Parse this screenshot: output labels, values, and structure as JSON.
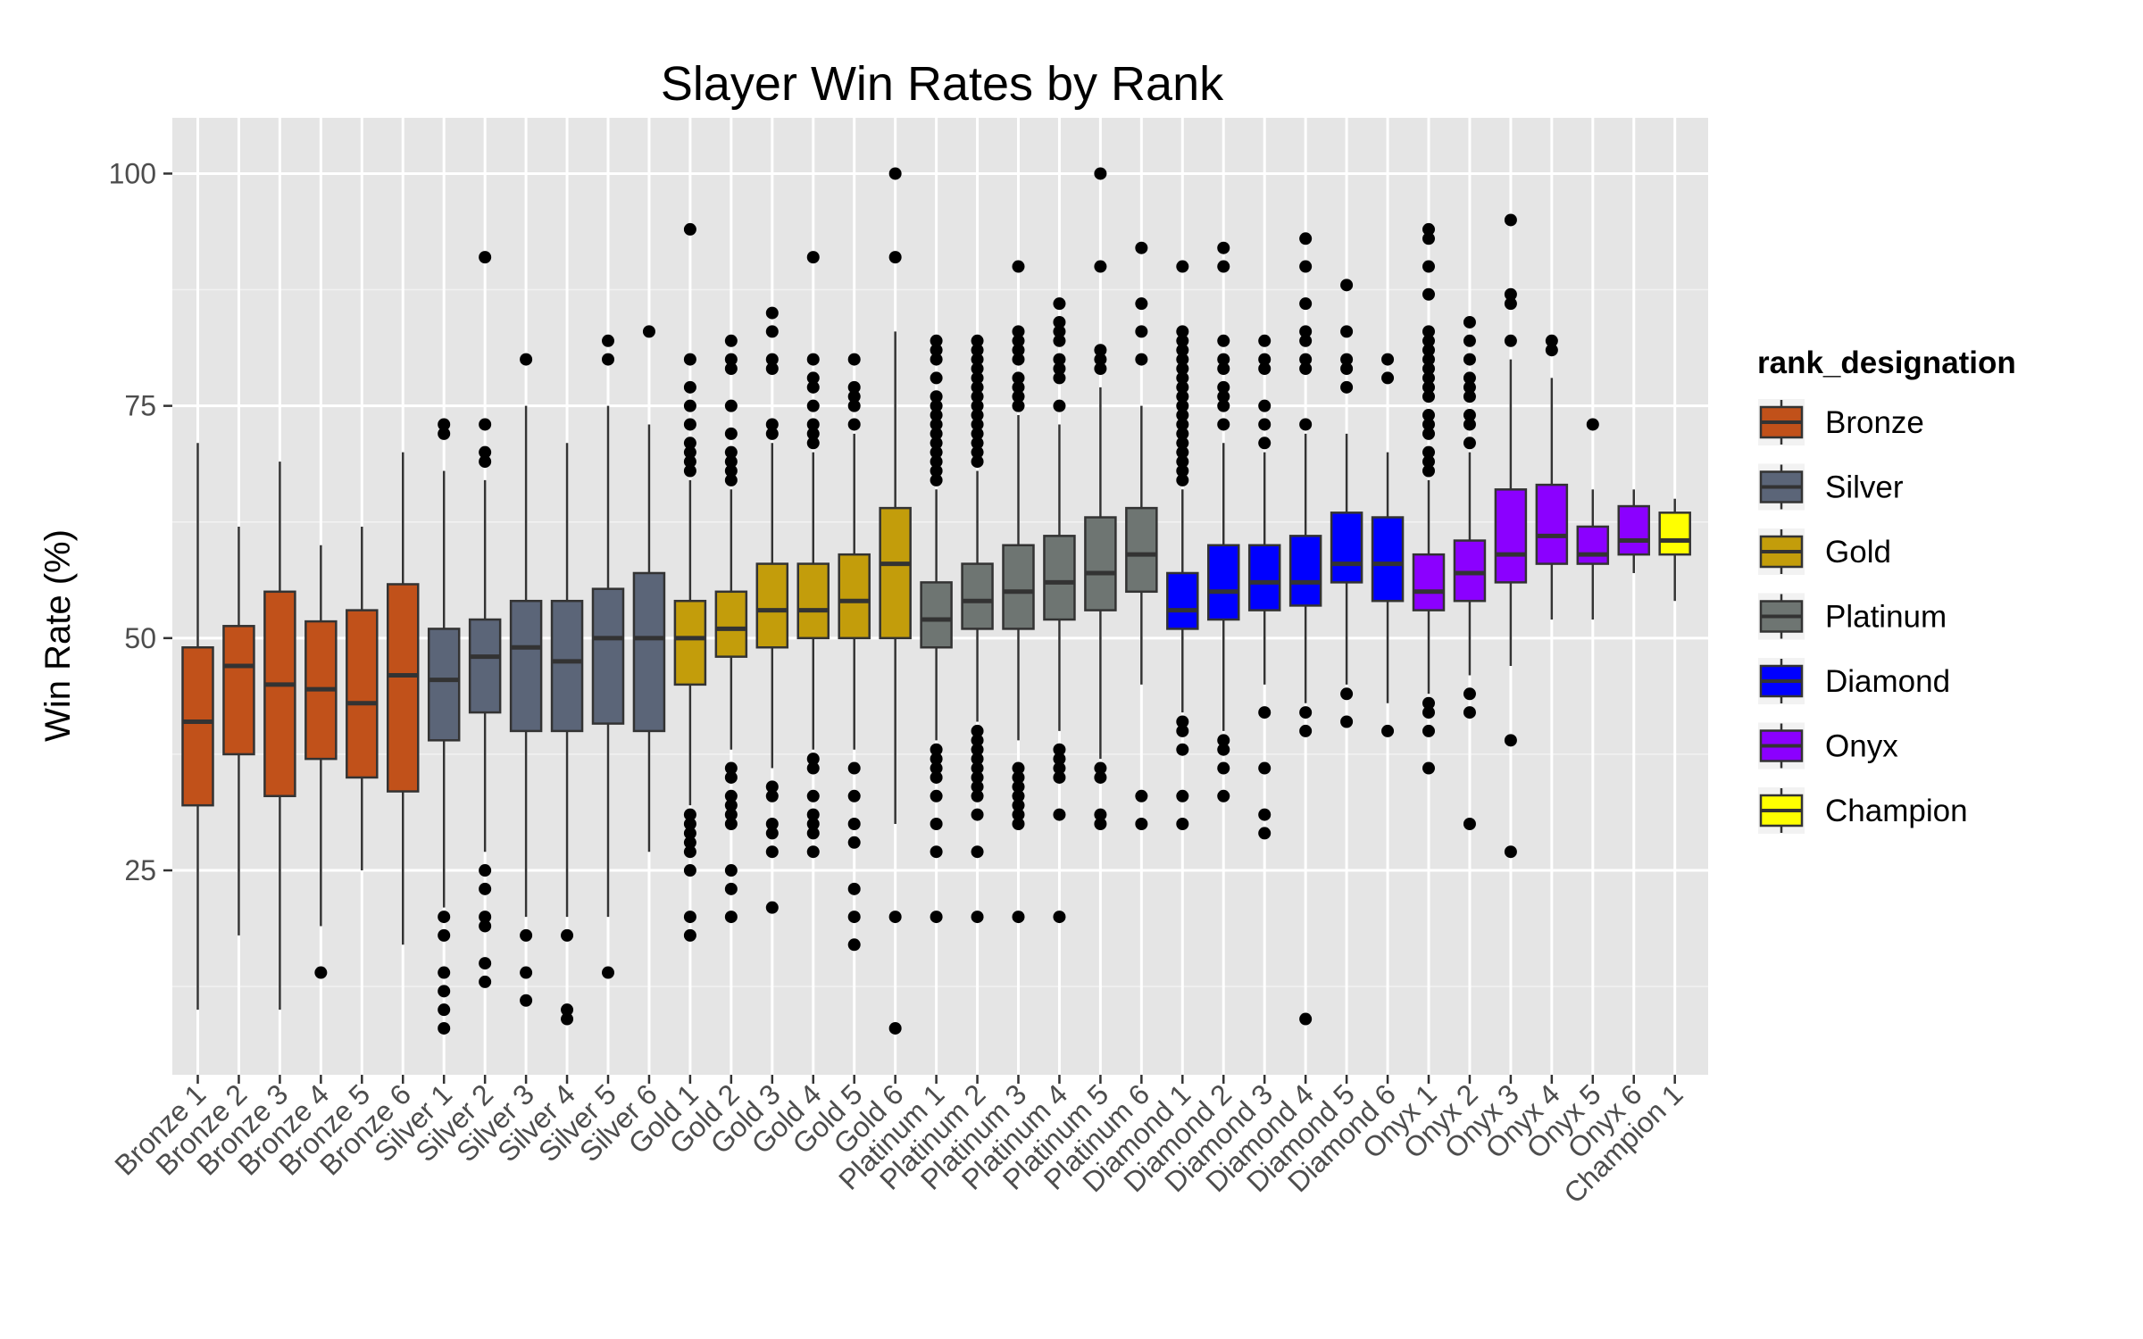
{
  "chart_data": {
    "type": "box",
    "title": "Slayer Win Rates by Rank",
    "xlabel": "",
    "ylabel": "Win Rate (%)",
    "ylim": [
      3,
      106
    ],
    "yticks": [
      25,
      50,
      75,
      100
    ],
    "grid": true,
    "legend": {
      "title": "rank_designation",
      "position": "right",
      "entries": [
        {
          "name": "Bronze",
          "color": "#C1511A"
        },
        {
          "name": "Silver",
          "color": "#5B6578"
        },
        {
          "name": "Gold",
          "color": "#C39D0B"
        },
        {
          "name": "Platinum",
          "color": "#6E7572"
        },
        {
          "name": "Diamond",
          "color": "#0000FF"
        },
        {
          "name": "Onyx",
          "color": "#8B00FF"
        },
        {
          "name": "Champion",
          "color": "#FFFF00"
        }
      ]
    },
    "categories": [
      "Bronze 1",
      "Bronze 2",
      "Bronze 3",
      "Bronze 4",
      "Bronze 5",
      "Bronze 6",
      "Silver 1",
      "Silver 2",
      "Silver 3",
      "Silver 4",
      "Silver 5",
      "Silver 6",
      "Gold 1",
      "Gold 2",
      "Gold 3",
      "Gold 4",
      "Gold 5",
      "Gold 6",
      "Platinum 1",
      "Platinum 2",
      "Platinum 3",
      "Platinum 4",
      "Platinum 5",
      "Platinum 6",
      "Diamond 1",
      "Diamond 2",
      "Diamond 3",
      "Diamond 4",
      "Diamond 5",
      "Diamond 6",
      "Onyx 1",
      "Onyx 2",
      "Onyx 3",
      "Onyx 4",
      "Onyx 5",
      "Onyx 6",
      "Champion 1"
    ],
    "boxes": [
      {
        "group": "Bronze",
        "lower": 10,
        "q1": 32,
        "median": 41,
        "q3": 49,
        "upper": 71,
        "outliers": []
      },
      {
        "group": "Bronze",
        "lower": 18,
        "q1": 37.5,
        "median": 47,
        "q3": 51.3,
        "upper": 62,
        "outliers": []
      },
      {
        "group": "Bronze",
        "lower": 10,
        "q1": 33,
        "median": 45,
        "q3": 55,
        "upper": 69,
        "outliers": []
      },
      {
        "group": "Bronze",
        "lower": 19,
        "q1": 37,
        "median": 44.5,
        "q3": 51.8,
        "upper": 60,
        "outliers": [
          14
        ]
      },
      {
        "group": "Bronze",
        "lower": 25,
        "q1": 35,
        "median": 43,
        "q3": 53,
        "upper": 62,
        "outliers": []
      },
      {
        "group": "Bronze",
        "lower": 17,
        "q1": 33.5,
        "median": 46,
        "q3": 55.8,
        "upper": 70,
        "outliers": []
      },
      {
        "group": "Silver",
        "lower": 21,
        "q1": 39,
        "median": 45.5,
        "q3": 51,
        "upper": 68,
        "outliers": [
          20,
          18,
          14,
          12,
          10,
          8,
          72,
          73
        ]
      },
      {
        "group": "Silver",
        "lower": 27,
        "q1": 42,
        "median": 48,
        "q3": 52,
        "upper": 67,
        "outliers": [
          25,
          23,
          20,
          19,
          15,
          13,
          69,
          70,
          73,
          91
        ]
      },
      {
        "group": "Silver",
        "lower": 20,
        "q1": 40,
        "median": 49,
        "q3": 54,
        "upper": 75,
        "outliers": [
          18,
          14,
          11,
          80
        ]
      },
      {
        "group": "Silver",
        "lower": 20,
        "q1": 40,
        "median": 47.5,
        "q3": 54,
        "upper": 71,
        "outliers": [
          18,
          10,
          9
        ]
      },
      {
        "group": "Silver",
        "lower": 20,
        "q1": 40.8,
        "median": 50,
        "q3": 55.3,
        "upper": 75,
        "outliers": [
          14,
          80,
          82
        ]
      },
      {
        "group": "Silver",
        "lower": 27,
        "q1": 40,
        "median": 50,
        "q3": 57,
        "upper": 73,
        "outliers": [
          83
        ]
      },
      {
        "group": "Gold",
        "lower": 32,
        "q1": 45,
        "median": 50,
        "q3": 54,
        "upper": 67,
        "outliers": [
          31,
          30,
          29,
          28,
          27,
          25,
          20,
          18,
          68,
          69,
          70,
          71,
          73,
          75,
          77,
          80,
          94
        ]
      },
      {
        "group": "Gold",
        "lower": 38,
        "q1": 48,
        "median": 51,
        "q3": 55,
        "upper": 66,
        "outliers": [
          36,
          35,
          33,
          32,
          31,
          30,
          25,
          23,
          20,
          67,
          68,
          69,
          70,
          72,
          75,
          79,
          80,
          82
        ]
      },
      {
        "group": "Gold",
        "lower": 36,
        "q1": 49,
        "median": 53,
        "q3": 58,
        "upper": 71,
        "outliers": [
          34,
          33,
          30,
          29,
          27,
          21,
          72,
          73,
          79,
          80,
          83,
          85
        ]
      },
      {
        "group": "Gold",
        "lower": 38,
        "q1": 50,
        "median": 53,
        "q3": 58,
        "upper": 70,
        "outliers": [
          37,
          36,
          33,
          31,
          30,
          29,
          27,
          71,
          72,
          73,
          75,
          77,
          78,
          80,
          91
        ]
      },
      {
        "group": "Gold",
        "lower": 38,
        "q1": 50,
        "median": 54,
        "q3": 59,
        "upper": 72,
        "outliers": [
          36,
          33,
          30,
          28,
          23,
          20,
          17,
          73,
          75,
          76,
          77,
          80
        ]
      },
      {
        "group": "Gold",
        "lower": 30,
        "q1": 50,
        "median": 58,
        "q3": 64,
        "upper": 83,
        "outliers": [
          20,
          8,
          91,
          100
        ]
      },
      {
        "group": "Platinum",
        "lower": 39,
        "q1": 49,
        "median": 52,
        "q3": 56,
        "upper": 66,
        "outliers": [
          38,
          37,
          36,
          35,
          33,
          30,
          27,
          20,
          67,
          68,
          69,
          70,
          71,
          72,
          73,
          74,
          75,
          76,
          78,
          80,
          81,
          82
        ]
      },
      {
        "group": "Platinum",
        "lower": 41,
        "q1": 51,
        "median": 54,
        "q3": 58,
        "upper": 68,
        "outliers": [
          40,
          39,
          38,
          37,
          36,
          35,
          34,
          33,
          31,
          27,
          20,
          69,
          70,
          71,
          72,
          73,
          74,
          75,
          76,
          77,
          78,
          79,
          80,
          81,
          82
        ]
      },
      {
        "group": "Platinum",
        "lower": 39,
        "q1": 51,
        "median": 55,
        "q3": 60,
        "upper": 74,
        "outliers": [
          36,
          35,
          34,
          33,
          32,
          31,
          30,
          20,
          75,
          76,
          77,
          78,
          80,
          81,
          82,
          83,
          90
        ]
      },
      {
        "group": "Platinum",
        "lower": 40,
        "q1": 52,
        "median": 56,
        "q3": 61,
        "upper": 73,
        "outliers": [
          38,
          37,
          36,
          35,
          31,
          20,
          75,
          78,
          79,
          80,
          82,
          83,
          84,
          86
        ]
      },
      {
        "group": "Platinum",
        "lower": 37,
        "q1": 53,
        "median": 57,
        "q3": 63,
        "upper": 77,
        "outliers": [
          36,
          35,
          31,
          30,
          79,
          80,
          81,
          90,
          100
        ]
      },
      {
        "group": "Platinum",
        "lower": 45,
        "q1": 55,
        "median": 59,
        "q3": 64,
        "upper": 75,
        "outliers": [
          33,
          30,
          80,
          83,
          86,
          92
        ]
      },
      {
        "group": "Diamond",
        "lower": 42,
        "q1": 51,
        "median": 53,
        "q3": 57,
        "upper": 66,
        "outliers": [
          41,
          40,
          38,
          33,
          30,
          67,
          68,
          69,
          70,
          71,
          72,
          73,
          74,
          75,
          76,
          77,
          78,
          79,
          80,
          81,
          82,
          83,
          90
        ]
      },
      {
        "group": "Diamond",
        "lower": 40,
        "q1": 52,
        "median": 55,
        "q3": 60,
        "upper": 71,
        "outliers": [
          39,
          38,
          36,
          33,
          73,
          75,
          76,
          77,
          79,
          80,
          82,
          90,
          92
        ]
      },
      {
        "group": "Diamond",
        "lower": 45,
        "q1": 53,
        "median": 56,
        "q3": 60,
        "upper": 70,
        "outliers": [
          42,
          36,
          31,
          29,
          71,
          73,
          75,
          79,
          80,
          82
        ]
      },
      {
        "group": "Diamond",
        "lower": 43,
        "q1": 53.5,
        "median": 56,
        "q3": 61,
        "upper": 72,
        "outliers": [
          42,
          40,
          9,
          73,
          79,
          80,
          82,
          83,
          86,
          90,
          93
        ]
      },
      {
        "group": "Diamond",
        "lower": 45,
        "q1": 56,
        "median": 58,
        "q3": 63.5,
        "upper": 72,
        "outliers": [
          44,
          41,
          77,
          79,
          80,
          83,
          88
        ]
      },
      {
        "group": "Diamond",
        "lower": 43,
        "q1": 54,
        "median": 58,
        "q3": 63,
        "upper": 70,
        "outliers": [
          40,
          78,
          80
        ]
      },
      {
        "group": "Onyx",
        "lower": 44,
        "q1": 53,
        "median": 55,
        "q3": 59,
        "upper": 67,
        "outliers": [
          43,
          42,
          40,
          36,
          68,
          69,
          70,
          72,
          73,
          74,
          76,
          77,
          78,
          79,
          80,
          81,
          82,
          83,
          87,
          90,
          93,
          94
        ]
      },
      {
        "group": "Onyx",
        "lower": 46,
        "q1": 54,
        "median": 57,
        "q3": 60.5,
        "upper": 70,
        "outliers": [
          44,
          42,
          30,
          71,
          73,
          74,
          76,
          77,
          78,
          80,
          82,
          84
        ]
      },
      {
        "group": "Onyx",
        "lower": 47,
        "q1": 56,
        "median": 59,
        "q3": 66,
        "upper": 80,
        "outliers": [
          39,
          27,
          82,
          86,
          87,
          95
        ]
      },
      {
        "group": "Onyx",
        "lower": 52,
        "q1": 58,
        "median": 61,
        "q3": 66.5,
        "upper": 78,
        "outliers": [
          81,
          82
        ]
      },
      {
        "group": "Onyx",
        "lower": 52,
        "q1": 58,
        "median": 59,
        "q3": 62,
        "upper": 66,
        "outliers": [
          73
        ]
      },
      {
        "group": "Onyx",
        "lower": 57,
        "q1": 59,
        "median": 60.5,
        "q3": 64.2,
        "upper": 66,
        "outliers": []
      },
      {
        "group": "Champion",
        "lower": 54,
        "q1": 59,
        "median": 60.5,
        "q3": 63.5,
        "upper": 65,
        "outliers": []
      }
    ]
  }
}
